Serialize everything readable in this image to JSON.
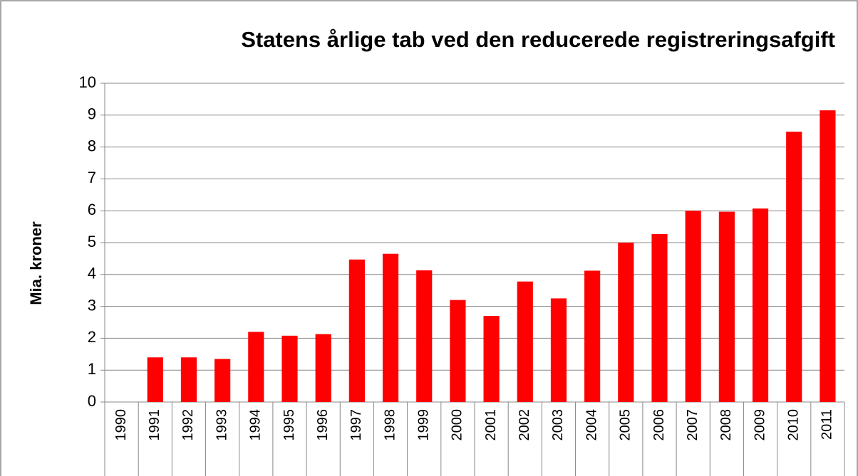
{
  "chart_data": {
    "type": "bar",
    "title": "Statens årlige tab ved den reducerede registreringsafgift",
    "y_label": "Mia. kroner",
    "categories": [
      "1990",
      "1991",
      "1992",
      "1993",
      "1994",
      "1995",
      "1996",
      "1997",
      "1998",
      "1999",
      "2000",
      "2001",
      "2002",
      "2003",
      "2004",
      "2005",
      "2006",
      "2007",
      "2008",
      "2009",
      "2010",
      "2011"
    ],
    "values": [
      0,
      1.4,
      1.4,
      1.35,
      2.2,
      2.08,
      2.13,
      4.47,
      4.65,
      4.13,
      3.2,
      2.7,
      3.78,
      3.25,
      4.12,
      5.0,
      5.27,
      6.0,
      5.97,
      6.07,
      8.48,
      9.15
    ],
    "color": "#ff0000",
    "ylim": [
      0,
      10
    ],
    "yticks": [
      0,
      1,
      2,
      3,
      4,
      5,
      6,
      7,
      8,
      9,
      10
    ],
    "grid": true
  }
}
